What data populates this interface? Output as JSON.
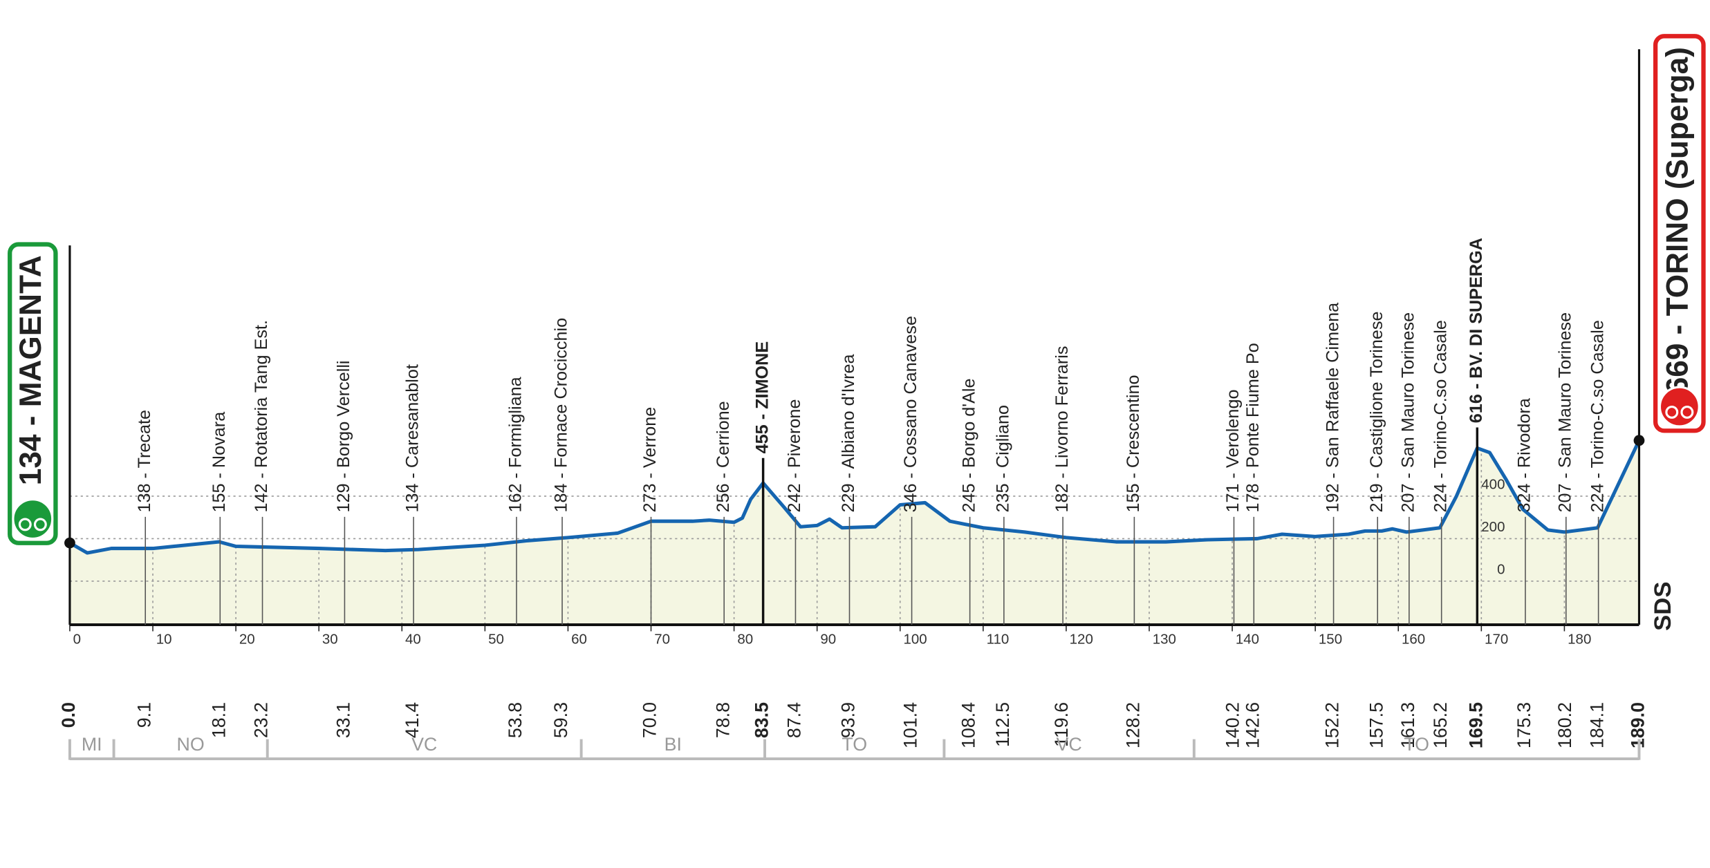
{
  "chart_data": {
    "type": "profile",
    "logo": "SDS",
    "xlim": [
      0,
      189
    ],
    "ylim": [
      -205,
      700
    ],
    "xticks": [
      0,
      10,
      20,
      30,
      40,
      50,
      60,
      70,
      80,
      90,
      100,
      110,
      120,
      130,
      140,
      150,
      160,
      170,
      180
    ],
    "yticks": [
      0,
      200,
      400
    ],
    "grid": true,
    "color": "#1565b0",
    "fill": "#f4f6e2",
    "x": [
      0,
      2.1,
      5,
      10,
      18,
      20,
      30,
      38,
      42,
      50,
      55,
      60,
      66,
      70,
      75,
      77,
      80,
      81,
      82,
      83.5,
      86,
      88,
      90,
      91.5,
      93,
      97,
      100,
      103,
      106,
      110,
      115,
      120,
      126,
      132,
      137,
      143,
      146,
      150,
      154,
      156,
      158,
      159.3,
      161,
      165,
      167,
      169.5,
      171,
      173,
      175,
      178,
      180,
      184,
      186,
      189
    ],
    "values": [
      180,
      133,
      154,
      154,
      185,
      164,
      154,
      144,
      149,
      169,
      190,
      205,
      226,
      282,
      282,
      287,
      277,
      297,
      385,
      462,
      349,
      256,
      262,
      292,
      251,
      256,
      359,
      369,
      282,
      251,
      231,
      205,
      185,
      185,
      195,
      200,
      221,
      210,
      221,
      236,
      236,
      246,
      231,
      251,
      400,
      626,
      605,
      477,
      338,
      241,
      231,
      251,
      415,
      662
    ],
    "start": {
      "name": "134 - MAGENTA",
      "km": {
        "value": 0,
        "label": "0.0"
      }
    },
    "finish": {
      "name": "669 - TORINO (Superga)",
      "km": {
        "value": 189,
        "label": "189.0"
      }
    },
    "waypoints": [
      {
        "name": "138 - Trecate",
        "km": 9.1
      },
      {
        "name": "155 - Novara",
        "km": 18.1
      },
      {
        "name": "142 - Rotatoria Tang Est.",
        "km": 23.2
      },
      {
        "name": "129 - Borgo Vercelli",
        "km": 33.1
      },
      {
        "name": "134 - Caresanablot",
        "km": 41.4
      },
      {
        "name": "162 - Formigliana",
        "km": 53.8
      },
      {
        "name": "184 - Fornace Crocicchio",
        "km": 59.3
      },
      {
        "name": "273 - Verrone",
        "km": {
          "value": 70,
          "label": "70.0"
        }
      },
      {
        "name": "256 - Cerrione",
        "km": 78.8
      },
      {
        "name": "455 - ZIMONE",
        "km": 83.5,
        "summit": true
      },
      {
        "name": "242 - Piverone",
        "km": 87.4
      },
      {
        "name": "229 - Albiano d'Ivrea",
        "km": 93.9
      },
      {
        "name": "346 - Cossano Canavese",
        "km": 101.4
      },
      {
        "name": "245 - Borgo d'Ale",
        "km": 108.4
      },
      {
        "name": "235 - Cigliano",
        "km": 112.5
      },
      {
        "name": "182 - Livorno Ferraris",
        "km": 119.6
      },
      {
        "name": "155 - Crescentino",
        "km": 128.2
      },
      {
        "name": "171 - Verolengo",
        "km": 140.2
      },
      {
        "name": "178 - Ponte Fiume Po",
        "km": 142.6
      },
      {
        "name": "192 - San Raffaele Cimena",
        "km": 152.2
      },
      {
        "name": "219 - Castiglione Torinese",
        "km": 157.5
      },
      {
        "name": "207 - San Mauro Torinese",
        "km": 161.3
      },
      {
        "name": "224 - Torino-C.so Casale",
        "km": 165.2
      },
      {
        "name": "616 - BV. DI SUPERGA",
        "km": 169.5,
        "summit": true
      },
      {
        "name": "324 - Rivodora",
        "km": 175.3
      },
      {
        "name": "207 - San Mauro Torinese",
        "km": 180.2
      },
      {
        "name": "224 - Torino-C.so Casale",
        "km": 184.1
      }
    ],
    "regions": [
      {
        "name": "MI",
        "from": 0,
        "to": 5.3
      },
      {
        "name": "NO",
        "from": 5.3,
        "to": 23.8
      },
      {
        "name": "VC",
        "from": 23.8,
        "to": 61.6
      },
      {
        "name": "BI",
        "from": 61.6,
        "to": 83.7
      },
      {
        "name": "TO",
        "from": 83.7,
        "to": 105.3
      },
      {
        "name": "VC",
        "from": 105.3,
        "to": 135.4
      },
      {
        "name": "TO",
        "from": 135.4,
        "to": 189
      }
    ]
  }
}
